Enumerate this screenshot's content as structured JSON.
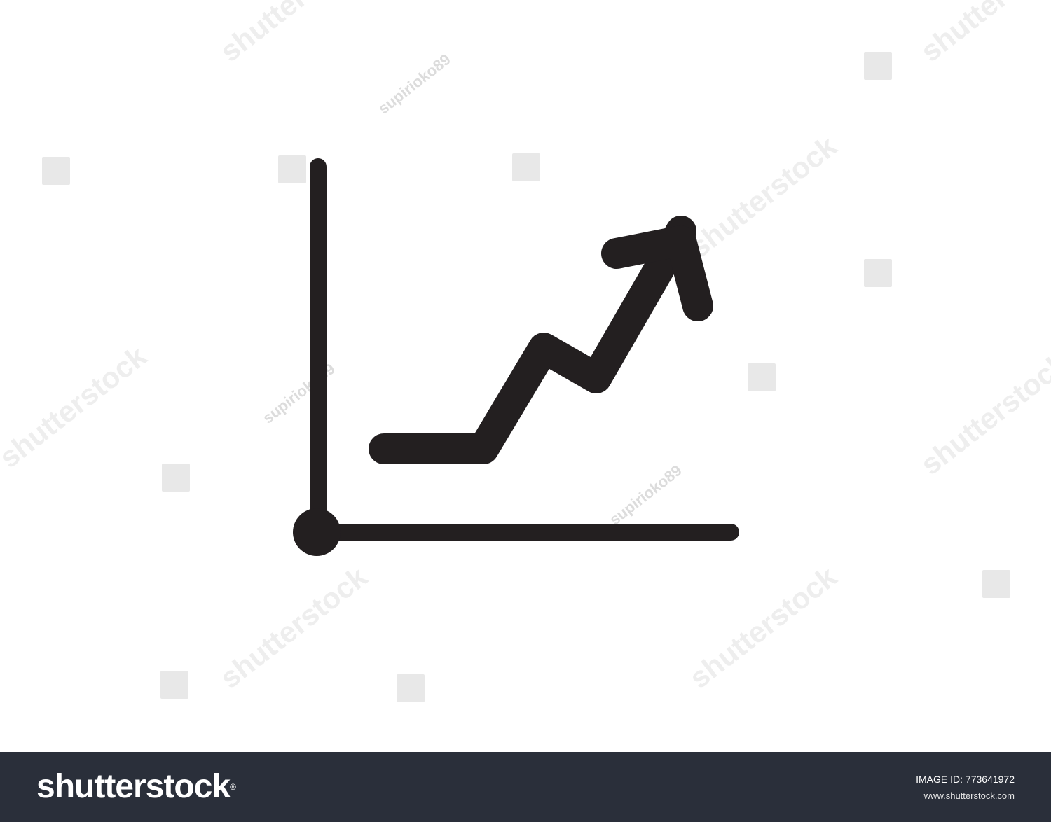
{
  "image": {
    "subject": "line-chart-upward-arrow-icon",
    "icon_color": "#231f20",
    "background_color": "#ffffff"
  },
  "watermarks": {
    "brand": "shutterstock",
    "contributor": "supirioko89"
  },
  "footer": {
    "background_color": "#2a2f3a",
    "logo_text": "shutterstock",
    "registered_mark": "®",
    "image_id_label": "IMAGE ID:",
    "image_id_value": "773641972",
    "url": "www.shutterstock.com"
  }
}
